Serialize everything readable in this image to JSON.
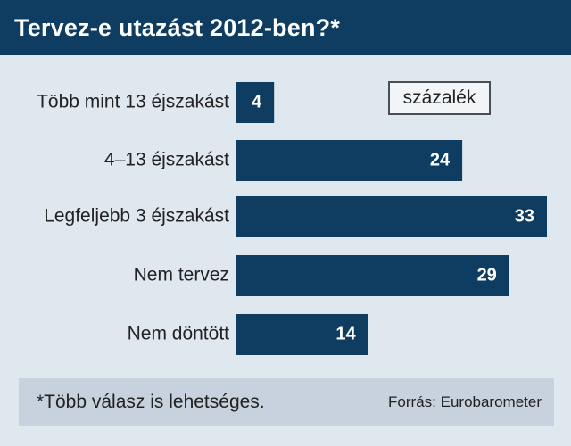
{
  "header": {
    "title": "Tervez-e utazást 2012-ben?*"
  },
  "legend": {
    "unit_label": "százalék"
  },
  "footer": {
    "note": "*Több válasz is lehetséges.",
    "source": "Forrás: Eurobarometer"
  },
  "chart_data": {
    "type": "bar",
    "orientation": "horizontal",
    "title": "Tervez-e utazást 2012-ben?*",
    "categories": [
      "Több mint 13 éjszakást",
      "4–13 éjszakást",
      "Legfeljebb 3 éjszakást",
      "Nem tervez",
      "Nem döntött"
    ],
    "values": [
      4,
      24,
      33,
      29,
      14
    ],
    "value_labels": [
      "4",
      "24",
      "33",
      "29",
      "14"
    ],
    "xlim": [
      0,
      33
    ],
    "grid": false,
    "unit": "százalék",
    "bar_color": "#0f3d62",
    "label_color": "#ffffff"
  }
}
